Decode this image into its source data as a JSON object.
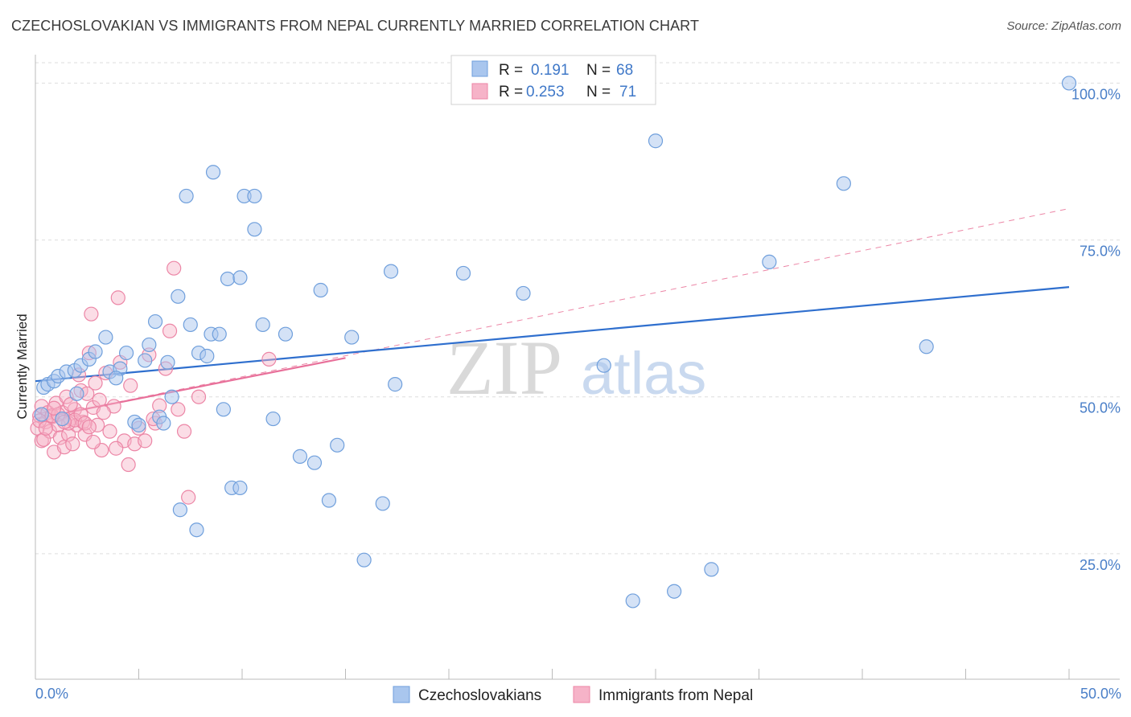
{
  "title": "CZECHOSLOVAKIAN VS IMMIGRANTS FROM NEPAL CURRENTLY MARRIED CORRELATION CHART",
  "source": "Source: ZipAtlas.com",
  "watermark": {
    "zip": "ZIP",
    "atlas": "atlas"
  },
  "legend": {
    "rows": [
      {
        "r_label": "R =",
        "r_value": "0.191",
        "n_label": "N =",
        "n_value": "68"
      },
      {
        "r_label": "R =",
        "r_value": "0.253",
        "n_label": "N =",
        "n_value": "71"
      }
    ]
  },
  "bottom_legend": [
    "Czechoslovakians",
    "Immigrants from Nepal"
  ],
  "colors": {
    "blue_fill": "#a9c6ee",
    "blue_stroke": "#6f9fdc",
    "blue_line": "#2f6fce",
    "pink_fill": "#f6b3c8",
    "pink_stroke": "#ec86a6",
    "pink_line": "#e8709a",
    "tick_text": "#4a7fc8",
    "grid": "#dddddd"
  },
  "chart_data": {
    "type": "scatter",
    "title": "CZECHOSLOVAKIAN VS IMMIGRANTS FROM NEPAL CURRENTLY MARRIED CORRELATION CHART",
    "xlabel": "",
    "ylabel": "Currently Married",
    "xlim": [
      0,
      50
    ],
    "ylim": [
      5,
      103
    ],
    "x_tick_labels": [
      "0.0%",
      "50.0%"
    ],
    "y_ticks": [
      25,
      50,
      75,
      100
    ],
    "y_tick_labels": [
      "25.0%",
      "50.0%",
      "75.0%",
      "100.0%"
    ],
    "series": [
      {
        "name": "Czechoslovakians",
        "r": 0.191,
        "n": 68,
        "trend": {
          "x": [
            0,
            50
          ],
          "y": [
            52.5,
            67.5
          ]
        },
        "points": [
          [
            0.4,
            51.5
          ],
          [
            0.6,
            52.0
          ],
          [
            0.9,
            52.5
          ],
          [
            1.1,
            53.3
          ],
          [
            1.5,
            54.0
          ],
          [
            1.9,
            54.2
          ],
          [
            2.2,
            55.0
          ],
          [
            2.6,
            56.0
          ],
          [
            2.9,
            57.2
          ],
          [
            3.4,
            59.5
          ],
          [
            3.6,
            54.0
          ],
          [
            4.1,
            54.5
          ],
          [
            4.4,
            57.0
          ],
          [
            4.8,
            46.0
          ],
          [
            5.0,
            45.5
          ],
          [
            5.3,
            55.8
          ],
          [
            5.5,
            58.3
          ],
          [
            5.8,
            62.0
          ],
          [
            6.0,
            46.8
          ],
          [
            6.4,
            55.5
          ],
          [
            6.6,
            50.0
          ],
          [
            6.9,
            66.0
          ],
          [
            7.0,
            32.0
          ],
          [
            7.3,
            82.0
          ],
          [
            7.5,
            61.5
          ],
          [
            7.8,
            28.8
          ],
          [
            7.9,
            57.0
          ],
          [
            8.3,
            56.5
          ],
          [
            8.5,
            60.0
          ],
          [
            8.6,
            85.8
          ],
          [
            8.9,
            60.0
          ],
          [
            9.3,
            68.8
          ],
          [
            9.5,
            35.5
          ],
          [
            9.9,
            35.5
          ],
          [
            9.9,
            69.0
          ],
          [
            10.1,
            82.0
          ],
          [
            10.6,
            82.0
          ],
          [
            10.6,
            76.7
          ],
          [
            11.0,
            61.5
          ],
          [
            11.5,
            46.5
          ],
          [
            12.1,
            60.0
          ],
          [
            12.8,
            40.5
          ],
          [
            13.5,
            39.5
          ],
          [
            13.8,
            67.0
          ],
          [
            14.2,
            33.5
          ],
          [
            14.6,
            42.3
          ],
          [
            15.3,
            59.5
          ],
          [
            15.9,
            24.0
          ],
          [
            16.8,
            33.0
          ],
          [
            17.2,
            70.0
          ],
          [
            17.4,
            52.0
          ],
          [
            20.7,
            69.7
          ],
          [
            23.6,
            66.5
          ],
          [
            27.5,
            55.0
          ],
          [
            28.9,
            17.5
          ],
          [
            30.0,
            90.8
          ],
          [
            30.9,
            19.0
          ],
          [
            32.7,
            22.5
          ],
          [
            35.5,
            71.5
          ],
          [
            39.1,
            84.0
          ],
          [
            43.1,
            58.0
          ],
          [
            50.0,
            100.0
          ],
          [
            0.3,
            47.2
          ],
          [
            1.3,
            46.5
          ],
          [
            2.0,
            50.5
          ],
          [
            3.9,
            53.0
          ],
          [
            6.2,
            45.8
          ],
          [
            9.1,
            48.0
          ]
        ]
      },
      {
        "name": "Immigrants from Nepal",
        "r": 0.253,
        "n": 71,
        "trend": {
          "x": [
            0,
            15
          ],
          "y": [
            46.5,
            56.2
          ]
        },
        "trend_extended": {
          "x": [
            0,
            50
          ],
          "y": [
            46.5,
            80.0
          ]
        },
        "points": [
          [
            0.1,
            45.0
          ],
          [
            0.2,
            47.0
          ],
          [
            0.3,
            43.0
          ],
          [
            0.3,
            48.5
          ],
          [
            0.5,
            46.0
          ],
          [
            0.6,
            47.5
          ],
          [
            0.7,
            44.5
          ],
          [
            0.8,
            46.8
          ],
          [
            0.9,
            41.2
          ],
          [
            1.0,
            49.0
          ],
          [
            1.1,
            45.5
          ],
          [
            1.2,
            43.5
          ],
          [
            1.3,
            47.5
          ],
          [
            1.4,
            42.0
          ],
          [
            1.5,
            50.0
          ],
          [
            1.6,
            44.0
          ],
          [
            1.7,
            46.5
          ],
          [
            1.8,
            42.5
          ],
          [
            1.9,
            48.0
          ],
          [
            2.0,
            45.5
          ],
          [
            2.1,
            53.5
          ],
          [
            2.2,
            51.0
          ],
          [
            2.3,
            46.0
          ],
          [
            2.4,
            44.0
          ],
          [
            2.5,
            50.5
          ],
          [
            2.6,
            57.0
          ],
          [
            2.7,
            63.2
          ],
          [
            2.8,
            48.3
          ],
          [
            2.9,
            52.2
          ],
          [
            3.0,
            45.5
          ],
          [
            3.1,
            49.5
          ],
          [
            3.2,
            41.5
          ],
          [
            3.4,
            53.8
          ],
          [
            3.6,
            44.5
          ],
          [
            3.8,
            48.5
          ],
          [
            4.0,
            65.8
          ],
          [
            4.1,
            55.5
          ],
          [
            4.3,
            43.0
          ],
          [
            4.5,
            39.2
          ],
          [
            4.6,
            51.8
          ],
          [
            4.8,
            42.5
          ],
          [
            5.0,
            45.0
          ],
          [
            5.3,
            43.0
          ],
          [
            5.5,
            56.7
          ],
          [
            5.8,
            45.8
          ],
          [
            6.0,
            48.6
          ],
          [
            6.3,
            54.5
          ],
          [
            6.5,
            60.5
          ],
          [
            6.7,
            70.5
          ],
          [
            6.9,
            48.0
          ],
          [
            7.2,
            44.5
          ],
          [
            7.4,
            34.0
          ],
          [
            7.9,
            50.0
          ],
          [
            11.3,
            56.0
          ],
          [
            0.4,
            43.2
          ],
          [
            0.8,
            47.0
          ],
          [
            1.1,
            47.2
          ],
          [
            1.6,
            45.8
          ],
          [
            1.9,
            46.3
          ],
          [
            2.2,
            47.2
          ],
          [
            2.4,
            45.8
          ],
          [
            2.6,
            45.2
          ],
          [
            3.3,
            47.5
          ],
          [
            0.2,
            46.2
          ],
          [
            0.5,
            45.0
          ],
          [
            0.9,
            48.2
          ],
          [
            1.4,
            46.0
          ],
          [
            1.7,
            48.8
          ],
          [
            2.8,
            42.8
          ],
          [
            3.9,
            41.8
          ],
          [
            5.7,
            46.5
          ]
        ]
      }
    ]
  }
}
